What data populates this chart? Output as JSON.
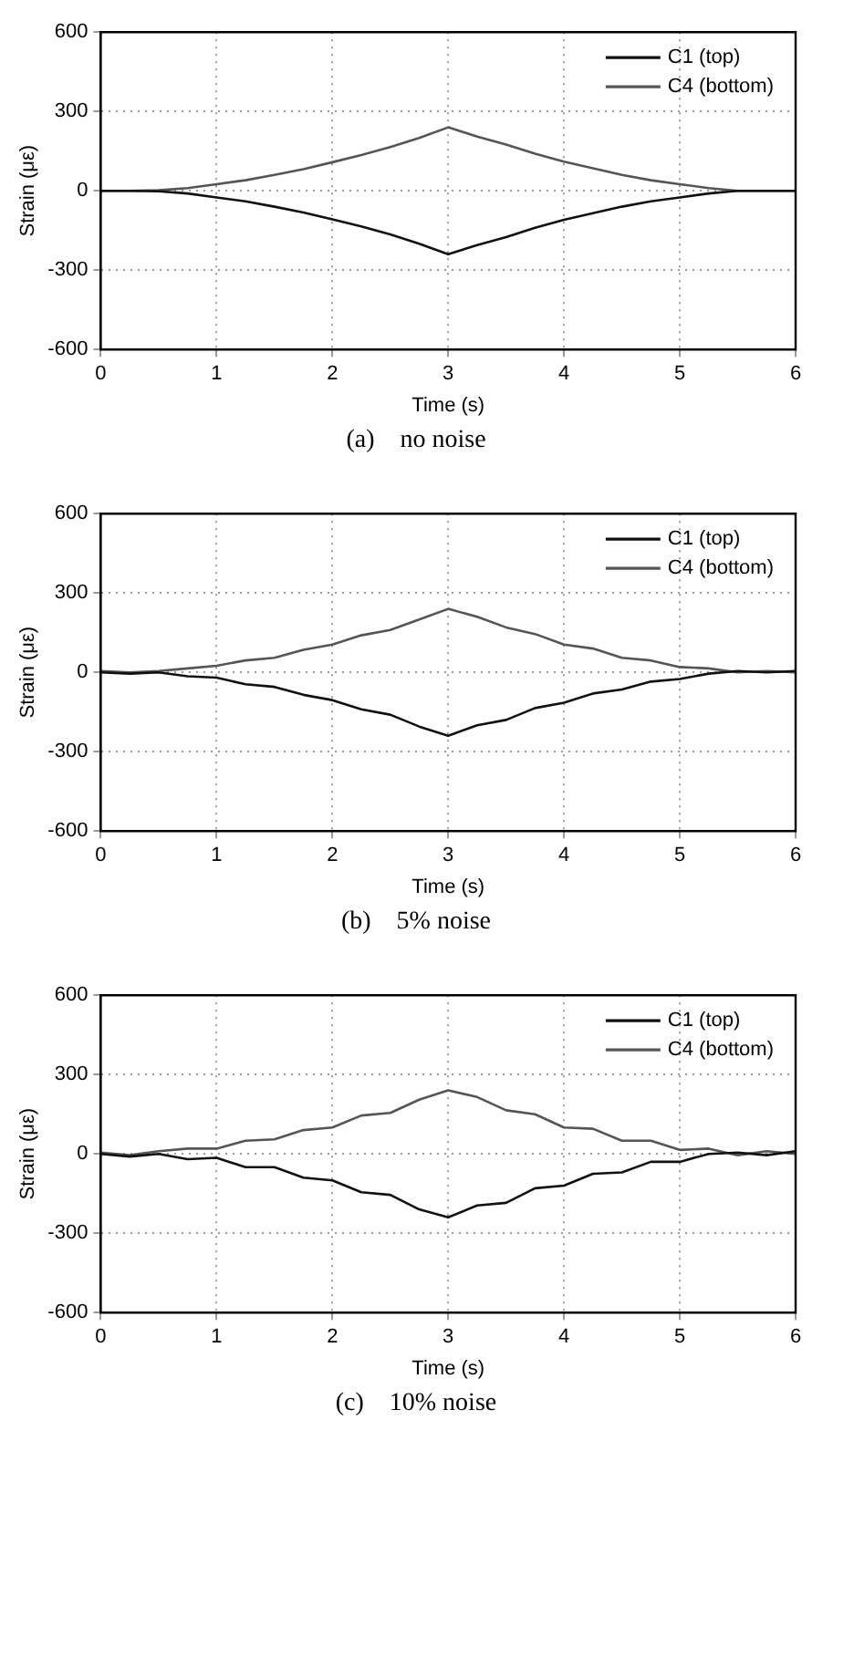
{
  "chart_data": [
    {
      "type": "line",
      "xlabel": "Time (s)",
      "ylabel": "Strain (με)",
      "x": [
        0,
        0.25,
        0.5,
        0.75,
        1,
        1.25,
        1.5,
        1.75,
        2,
        2.25,
        2.5,
        2.75,
        3,
        3.25,
        3.5,
        3.75,
        4,
        4.25,
        4.5,
        4.75,
        5,
        5.25,
        5.5,
        5.75,
        6
      ],
      "xlim": [
        0,
        6
      ],
      "xticks": [
        0,
        1,
        2,
        3,
        4,
        5,
        6
      ],
      "ylim": [
        -600,
        600
      ],
      "yticks": [
        -600,
        -300,
        0,
        300,
        600
      ],
      "grid": true,
      "legend": "top right",
      "marker": "none",
      "line_style": "solid",
      "annotations": [
        "(a)    no noise"
      ],
      "series": [
        {
          "name": "C1 (top)",
          "color": "#111111",
          "values": [
            0,
            0,
            -2,
            -10,
            -25,
            -40,
            -60,
            -82,
            -108,
            -135,
            -165,
            -200,
            -240,
            -205,
            -175,
            -140,
            -110,
            -85,
            -60,
            -40,
            -25,
            -10,
            0,
            0,
            0
          ]
        },
        {
          "name": "C4 (bottom)",
          "color": "#555555",
          "values": [
            0,
            0,
            2,
            10,
            25,
            40,
            60,
            82,
            108,
            135,
            165,
            200,
            240,
            205,
            175,
            140,
            110,
            85,
            60,
            40,
            25,
            10,
            0,
            0,
            0
          ]
        }
      ]
    },
    {
      "type": "line",
      "xlabel": "Time (s)",
      "ylabel": "Strain (με)",
      "x": [
        0,
        0.25,
        0.5,
        0.75,
        1,
        1.25,
        1.5,
        1.75,
        2,
        2.25,
        2.5,
        2.75,
        3,
        3.25,
        3.5,
        3.75,
        4,
        4.25,
        4.5,
        4.75,
        5,
        5.25,
        5.5,
        5.75,
        6
      ],
      "xlim": [
        0,
        6
      ],
      "xticks": [
        0,
        1,
        2,
        3,
        4,
        5,
        6
      ],
      "ylim": [
        -600,
        600
      ],
      "yticks": [
        -600,
        -300,
        0,
        300,
        600
      ],
      "grid": true,
      "legend": "top right",
      "marker": "none",
      "line_style": "solid",
      "annotations": [
        "(b)    5% noise"
      ],
      "series": [
        {
          "name": "C1 (top)",
          "color": "#111111",
          "values": [
            0,
            -5,
            0,
            -15,
            -20,
            -45,
            -55,
            -85,
            -105,
            -140,
            -160,
            -205,
            -240,
            -200,
            -180,
            -135,
            -115,
            -80,
            -65,
            -35,
            -25,
            -5,
            5,
            0,
            5
          ]
        },
        {
          "name": "C4 (bottom)",
          "color": "#555555",
          "values": [
            5,
            0,
            5,
            15,
            25,
            45,
            55,
            85,
            105,
            140,
            160,
            200,
            240,
            210,
            170,
            145,
            105,
            90,
            55,
            45,
            20,
            15,
            0,
            5,
            0
          ]
        }
      ]
    },
    {
      "type": "line",
      "xlabel": "Time (s)",
      "ylabel": "Strain (με)",
      "x": [
        0,
        0.25,
        0.5,
        0.75,
        1,
        1.25,
        1.5,
        1.75,
        2,
        2.25,
        2.5,
        2.75,
        3,
        3.25,
        3.5,
        3.75,
        4,
        4.25,
        4.5,
        4.75,
        5,
        5.25,
        5.5,
        5.75,
        6
      ],
      "xlim": [
        0,
        6
      ],
      "xticks": [
        0,
        1,
        2,
        3,
        4,
        5,
        6
      ],
      "ylim": [
        -600,
        600
      ],
      "yticks": [
        -600,
        -300,
        0,
        300,
        600
      ],
      "grid": true,
      "legend": "top right",
      "marker": "none",
      "line_style": "solid",
      "annotations": [
        "(c)    10% noise"
      ],
      "series": [
        {
          "name": "C1 (top)",
          "color": "#111111",
          "values": [
            0,
            -10,
            0,
            -20,
            -15,
            -50,
            -50,
            -90,
            -100,
            -145,
            -155,
            -210,
            -240,
            -195,
            -185,
            -130,
            -120,
            -75,
            -70,
            -30,
            -30,
            0,
            5,
            -5,
            10
          ]
        },
        {
          "name": "C4 (bottom)",
          "color": "#555555",
          "values": [
            5,
            -5,
            10,
            20,
            20,
            50,
            55,
            90,
            100,
            145,
            155,
            205,
            240,
            215,
            165,
            150,
            100,
            95,
            50,
            50,
            15,
            20,
            -5,
            10,
            0
          ]
        }
      ]
    }
  ]
}
